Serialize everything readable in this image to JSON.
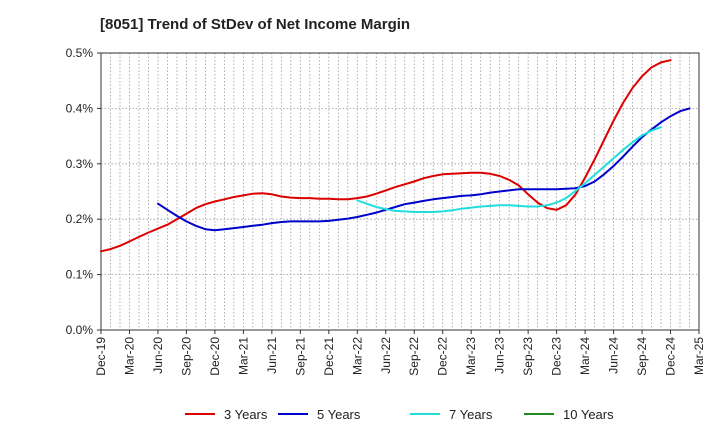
{
  "chart_data": {
    "type": "line",
    "title": "[8051]  Trend of StDev of Net Income Margin",
    "xlabel": "",
    "ylabel": "",
    "x_ticks": [
      "Dec-19",
      "Mar-20",
      "Jun-20",
      "Sep-20",
      "Dec-20",
      "Mar-21",
      "Jun-21",
      "Sep-21",
      "Dec-21",
      "Mar-22",
      "Jun-22",
      "Sep-22",
      "Dec-22",
      "Mar-23",
      "Jun-23",
      "Sep-23",
      "Dec-23",
      "Mar-24",
      "Jun-24",
      "Sep-24",
      "Dec-24",
      "Mar-25"
    ],
    "y_ticks": [
      "0.0%",
      "0.1%",
      "0.2%",
      "0.3%",
      "0.4%",
      "0.5%"
    ],
    "ylim": [
      0,
      0.5
    ],
    "grid": true,
    "legend_position": "bottom",
    "series": [
      {
        "name": "3 Years",
        "color": "#dd0000",
        "start_index": 0,
        "values": [
          0.142,
          0.146,
          0.152,
          0.16,
          0.168,
          0.176,
          0.183,
          0.19,
          0.2,
          0.21,
          0.22,
          0.227,
          0.232,
          0.236,
          0.24,
          0.243,
          0.246,
          0.247,
          0.245,
          0.241,
          0.239,
          0.238,
          0.238,
          0.237,
          0.237,
          0.236,
          0.236,
          0.238,
          0.241,
          0.246,
          0.252,
          0.258,
          0.263,
          0.268,
          0.274,
          0.278,
          0.281,
          0.282,
          0.283,
          0.284,
          0.284,
          0.282,
          0.278,
          0.271,
          0.261,
          0.245,
          0.23,
          0.22,
          0.217,
          0.225,
          0.245,
          0.275,
          0.308,
          0.343,
          0.378,
          0.41,
          0.437,
          0.458,
          0.474,
          0.483,
          0.487
        ]
      },
      {
        "name": "5 Years",
        "color": "#0000cc",
        "start_index": 6,
        "values": [
          0.228,
          0.217,
          0.206,
          0.196,
          0.188,
          0.182,
          0.18,
          0.182,
          0.184,
          0.186,
          0.188,
          0.19,
          0.193,
          0.195,
          0.196,
          0.196,
          0.196,
          0.196,
          0.197,
          0.199,
          0.201,
          0.204,
          0.208,
          0.212,
          0.217,
          0.222,
          0.227,
          0.23,
          0.233,
          0.236,
          0.238,
          0.24,
          0.242,
          0.243,
          0.245,
          0.248,
          0.25,
          0.252,
          0.254,
          0.254,
          0.254,
          0.254,
          0.254,
          0.255,
          0.256,
          0.26,
          0.268,
          0.281,
          0.296,
          0.313,
          0.331,
          0.348,
          0.362,
          0.375,
          0.386,
          0.395,
          0.4
        ]
      },
      {
        "name": "7 Years",
        "color": "#22dddd",
        "start_index": 27,
        "values": [
          0.234,
          0.228,
          0.222,
          0.218,
          0.215,
          0.214,
          0.213,
          0.213,
          0.213,
          0.214,
          0.216,
          0.219,
          0.221,
          0.223,
          0.224,
          0.225,
          0.225,
          0.224,
          0.223,
          0.223,
          0.225,
          0.23,
          0.238,
          0.251,
          0.265,
          0.28,
          0.295,
          0.31,
          0.325,
          0.339,
          0.351,
          0.36,
          0.366
        ]
      },
      {
        "name": "10 Years",
        "color": "#228822",
        "start_index": 0,
        "values": []
      }
    ]
  }
}
